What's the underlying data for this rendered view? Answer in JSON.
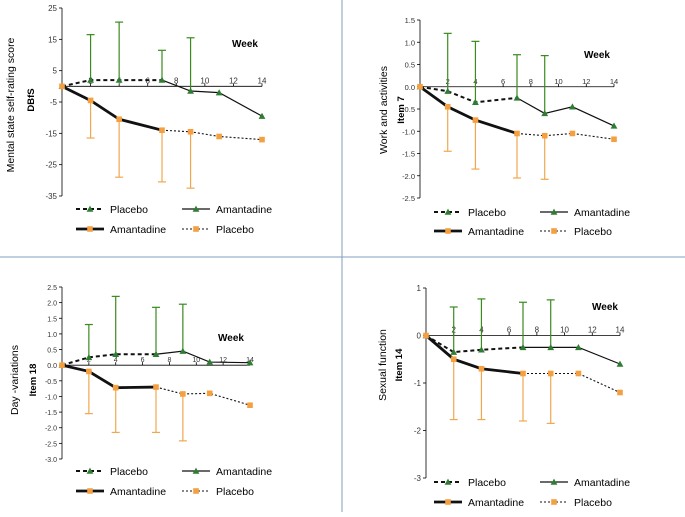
{
  "colors": {
    "amantadine_green": "#2e7d32",
    "amantadine_line": "#1a1a1a",
    "placebo_orange": "#f5a040",
    "error_green": "#3a8a1e",
    "error_orange": "#f0a850",
    "divider": "#7f9fbf",
    "axis": "#000000"
  },
  "chart_data": [
    {
      "id": "dbfs",
      "type": "line",
      "ylabel": "Mental state self-rating score",
      "ylabel2": "DBfS",
      "xlabel": "Week",
      "xlim": [
        0,
        14
      ],
      "ylim": [
        -35,
        25
      ],
      "yticks": [
        25,
        15,
        5,
        -5,
        -15,
        -25,
        -35
      ],
      "ytick_labels": [
        "25",
        "15",
        "5",
        "-5",
        "-15",
        "-25",
        "-35"
      ],
      "xticks": [
        2,
        4,
        6,
        8,
        10,
        12,
        14
      ],
      "xtick_labels": [
        "2",
        "4",
        "6",
        "8",
        "10",
        "12",
        "14"
      ],
      "green": {
        "placebo": {
          "x": [
            0,
            2,
            4,
            7
          ],
          "y": [
            0,
            2,
            2,
            2
          ]
        },
        "amantadine": {
          "x": [
            7,
            9,
            11,
            14
          ],
          "y": [
            2,
            -1.5,
            -2,
            -9.5
          ]
        },
        "errors": [
          {
            "x": 2,
            "y": 2,
            "hi": 16.5
          },
          {
            "x": 4,
            "y": 2,
            "hi": 20.5
          },
          {
            "x": 7,
            "y": 2,
            "hi": 11.5
          },
          {
            "x": 9,
            "y": -1.5,
            "hi": 15.5
          }
        ]
      },
      "orange": {
        "amantadine": {
          "x": [
            0,
            2,
            4,
            7
          ],
          "y": [
            0,
            -4.5,
            -10.5,
            -14
          ]
        },
        "placebo": {
          "x": [
            7,
            9,
            11,
            14
          ],
          "y": [
            -14,
            -14.5,
            -16,
            -17
          ]
        },
        "errors": [
          {
            "x": 2,
            "y": -4.5,
            "lo": -16.5
          },
          {
            "x": 4,
            "y": -10.5,
            "lo": -29
          },
          {
            "x": 7,
            "y": -14,
            "lo": -30.5
          },
          {
            "x": 9,
            "y": -14.5,
            "lo": -32.5
          }
        ]
      },
      "legend": {
        "green_placebo": "Placebo",
        "green_amantadine": "Amantadine",
        "orange_amantadine": "Amantadine",
        "orange_placebo": "Placebo"
      }
    },
    {
      "id": "item7",
      "type": "line",
      "ylabel": "Work and activities",
      "ylabel2": "Item 7",
      "xlabel": "Week",
      "xlim": [
        0,
        14
      ],
      "ylim": [
        -2.5,
        1.5
      ],
      "yticks": [
        1.5,
        1,
        0.5,
        0,
        -0.5,
        -1,
        -1.5,
        -2,
        -2.5
      ],
      "ytick_labels": [
        "1.5",
        "1.0",
        "0.5",
        "0.0",
        "-0.5",
        "-1.0",
        "-1.5",
        "-2.0",
        "-2.5"
      ],
      "xticks": [
        2,
        4,
        6,
        8,
        10,
        12,
        14
      ],
      "xtick_labels": [
        "2",
        "4",
        "6",
        "8",
        "10",
        "12",
        "14"
      ],
      "green": {
        "placebo": {
          "x": [
            0,
            2,
            4,
            7
          ],
          "y": [
            0,
            -0.1,
            -0.35,
            -0.25
          ]
        },
        "amantadine": {
          "x": [
            7,
            9,
            11,
            14
          ],
          "y": [
            -0.25,
            -0.6,
            -0.45,
            -0.88
          ]
        },
        "errors": [
          {
            "x": 2,
            "y": -0.1,
            "hi": 1.2
          },
          {
            "x": 4,
            "y": -0.35,
            "hi": 1.02
          },
          {
            "x": 7,
            "y": -0.25,
            "hi": 0.72
          },
          {
            "x": 9,
            "y": -0.6,
            "hi": 0.7
          }
        ]
      },
      "orange": {
        "amantadine": {
          "x": [
            0,
            2,
            4,
            7
          ],
          "y": [
            0,
            -0.45,
            -0.75,
            -1.05
          ]
        },
        "placebo": {
          "x": [
            7,
            9,
            11,
            14
          ],
          "y": [
            -1.05,
            -1.1,
            -1.05,
            -1.18
          ]
        },
        "errors": [
          {
            "x": 2,
            "y": -0.45,
            "lo": -1.45
          },
          {
            "x": 4,
            "y": -0.75,
            "lo": -1.85
          },
          {
            "x": 7,
            "y": -1.05,
            "lo": -2.05
          },
          {
            "x": 9,
            "y": -1.1,
            "lo": -2.08
          }
        ]
      },
      "legend": {
        "green_placebo": "Placebo",
        "green_amantadine": "Amantadine",
        "orange_amantadine": "Amantadine",
        "orange_placebo": "Placebo"
      }
    },
    {
      "id": "item18",
      "type": "line",
      "ylabel": "Day -variations",
      "ylabel2": "Item 18",
      "xlabel": "Week",
      "xlim": [
        0,
        14
      ],
      "ylim": [
        -3,
        2.5
      ],
      "yticks": [
        2.5,
        2,
        1.5,
        1,
        0.5,
        0,
        -0.5,
        -1,
        -1.5,
        -2,
        -2.5,
        -3
      ],
      "ytick_labels": [
        "2.5",
        "2.0",
        "1.5",
        "1.0",
        "0.5",
        "0.0",
        "-0.5",
        "-1.0",
        "-1.5",
        "-2.0",
        "-2.5",
        "-3.0"
      ],
      "xticks": [
        2,
        4,
        6,
        8,
        10,
        12,
        14
      ],
      "xtick_labels": [
        "2",
        "4",
        "6",
        "8",
        "10",
        "12",
        "14"
      ],
      "green": {
        "placebo": {
          "x": [
            0,
            2,
            4,
            7
          ],
          "y": [
            0,
            0.25,
            0.35,
            0.35
          ]
        },
        "amantadine": {
          "x": [
            7,
            9,
            11,
            14
          ],
          "y": [
            0.35,
            0.45,
            0.1,
            0.08
          ]
        },
        "errors": [
          {
            "x": 2,
            "y": 0.25,
            "hi": 1.3
          },
          {
            "x": 4,
            "y": 0.35,
            "hi": 2.2
          },
          {
            "x": 7,
            "y": 0.35,
            "hi": 1.85
          },
          {
            "x": 9,
            "y": 0.45,
            "hi": 1.95
          }
        ]
      },
      "orange": {
        "amantadine": {
          "x": [
            0,
            2,
            4,
            7
          ],
          "y": [
            0,
            -0.2,
            -0.72,
            -0.7
          ]
        },
        "placebo": {
          "x": [
            7,
            9,
            11,
            14
          ],
          "y": [
            -0.7,
            -0.92,
            -0.9,
            -1.28
          ]
        },
        "errors": [
          {
            "x": 2,
            "y": -0.2,
            "lo": -1.55
          },
          {
            "x": 4,
            "y": -0.72,
            "lo": -2.15
          },
          {
            "x": 7,
            "y": -0.7,
            "lo": -2.15
          },
          {
            "x": 9,
            "y": -0.92,
            "lo": -2.42
          }
        ]
      },
      "legend": {
        "green_placebo": "Placebo",
        "green_amantadine": "Amantadine",
        "orange_amantadine": "Amantadine",
        "orange_placebo": "Placebo"
      }
    },
    {
      "id": "item14",
      "type": "line",
      "ylabel": "Sexual function",
      "ylabel2": "Item 14",
      "xlabel": "Week",
      "xlim": [
        0,
        14
      ],
      "ylim": [
        -3,
        1
      ],
      "yticks": [
        1,
        0,
        -1,
        -2,
        -3
      ],
      "ytick_labels": [
        "1",
        "0",
        "-1",
        "-2",
        "-3"
      ],
      "xticks": [
        2,
        4,
        6,
        8,
        10,
        12,
        14
      ],
      "xtick_labels": [
        "2",
        "4",
        "6",
        "8",
        "10",
        "12",
        "14"
      ],
      "green": {
        "placebo": {
          "x": [
            0,
            2,
            4,
            7
          ],
          "y": [
            0,
            -0.35,
            -0.3,
            -0.25
          ]
        },
        "amantadine": {
          "x": [
            7,
            9,
            11,
            14
          ],
          "y": [
            -0.25,
            -0.25,
            -0.25,
            -0.6
          ]
        },
        "errors": [
          {
            "x": 2,
            "y": -0.35,
            "hi": 0.6
          },
          {
            "x": 4,
            "y": -0.3,
            "hi": 0.77
          },
          {
            "x": 7,
            "y": -0.25,
            "hi": 0.7
          },
          {
            "x": 9,
            "y": -0.25,
            "hi": 0.75
          }
        ]
      },
      "orange": {
        "amantadine": {
          "x": [
            0,
            2,
            4,
            7
          ],
          "y": [
            0,
            -0.5,
            -0.7,
            -0.8
          ]
        },
        "placebo": {
          "x": [
            7,
            9,
            11,
            14
          ],
          "y": [
            -0.8,
            -0.8,
            -0.8,
            -1.2
          ]
        },
        "errors": [
          {
            "x": 2,
            "y": -0.5,
            "lo": -1.77
          },
          {
            "x": 4,
            "y": -0.7,
            "lo": -1.77
          },
          {
            "x": 7,
            "y": -0.8,
            "lo": -1.8
          },
          {
            "x": 9,
            "y": -0.8,
            "lo": -1.85
          }
        ]
      },
      "legend": {
        "green_placebo": "Placebo",
        "green_amantadine": "Amantadine",
        "orange_amantadine": "Amantadine",
        "orange_placebo": "Placebo"
      }
    }
  ]
}
